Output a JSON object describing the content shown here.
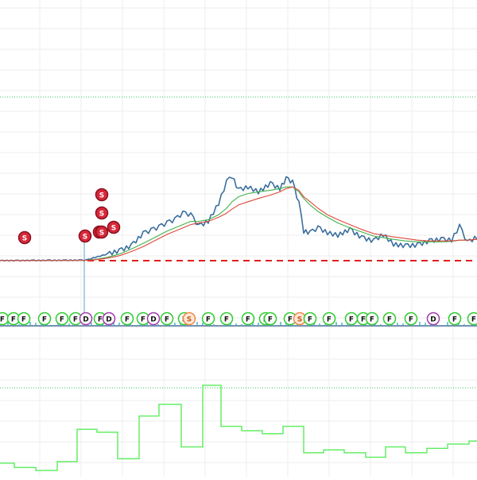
{
  "colors": {
    "background": "#ffffff",
    "grid": "#eeeeee",
    "dotted_line": "#34c26a",
    "price_line": "#3a6e9e",
    "ma_fast": "#e0463c",
    "ma_slow": "#41b24a",
    "threshold": "#e01e1e",
    "marker_sell": "#d8283a",
    "marker_f": "#2ecc2e",
    "marker_d": "#a23ab0",
    "marker_s_light": "#f08a4b",
    "panel_line": "#66ee66",
    "volume_bar": "#3ab0c4"
  },
  "markers": {
    "sell_label": "S",
    "f_label": "F",
    "d_label": "D",
    "s_label": "S"
  },
  "chart_data": [
    {
      "type": "line",
      "title": "",
      "xlabel": "",
      "ylabel": "",
      "grid": true,
      "x": [
        0,
        20,
        40,
        60,
        80,
        100,
        108,
        120,
        135,
        150,
        165,
        180,
        190,
        200,
        210,
        220,
        230,
        240,
        250,
        262,
        275,
        285,
        292,
        300,
        312,
        325,
        340,
        352,
        360,
        368,
        376,
        382,
        390,
        400,
        412,
        425,
        440,
        455,
        470,
        482,
        495,
        510,
        525,
        540,
        555,
        568,
        578,
        588,
        600
      ],
      "series": [
        {
          "values": [
            2,
            2,
            2.2,
            2.3,
            2.4,
            2.5,
            2.4,
            6,
            10,
            14,
            20,
            35,
            39,
            43,
            48,
            52,
            60,
            58,
            44,
            50,
            72,
            98,
            105,
            88,
            92,
            86,
            96,
            90,
            102,
            98,
            72,
            38,
            36,
            42,
            36,
            33,
            40,
            30,
            26,
            34,
            22,
            20,
            21,
            26,
            28,
            27,
            44,
            24,
            31
          ]
        },
        {
          "values": [
            2,
            2,
            2,
            2.1,
            2.2,
            2.3,
            2.4,
            3.5,
            6,
            10,
            16,
            23,
            28,
            33,
            38,
            42,
            46,
            50,
            50,
            52,
            58,
            66,
            74,
            80,
            84,
            86,
            88,
            90,
            92,
            92,
            86,
            78,
            70,
            62,
            55,
            48,
            42,
            37,
            32,
            30,
            28,
            26,
            25,
            25,
            25,
            25.5,
            27,
            27,
            28
          ]
        },
        {
          "values": [
            2,
            2,
            2,
            2.1,
            2.1,
            2.2,
            2.3,
            3,
            5,
            8,
            13,
            19,
            24,
            29,
            34,
            38,
            42,
            46,
            48,
            50,
            55,
            60,
            65,
            70,
            74,
            78,
            82,
            86,
            90,
            92,
            88,
            80,
            74,
            66,
            58,
            52,
            46,
            40,
            35,
            33,
            31,
            29,
            27,
            26,
            26,
            26,
            27,
            27,
            28
          ]
        }
      ]
    },
    {
      "type": "line",
      "title": "",
      "xlabel": "",
      "ylabel": "",
      "grid": true,
      "x": [
        0,
        18,
        45,
        72,
        97,
        122,
        148,
        175,
        200,
        228,
        255,
        278,
        304,
        330,
        356,
        382,
        407,
        433,
        460,
        485,
        510,
        537,
        563,
        590
      ],
      "series": [
        {
          "values": [
            5,
            2,
            0,
            6,
            28,
            26,
            8,
            37,
            45,
            16,
            58,
            30,
            27,
            25,
            30,
            12,
            14,
            12,
            9,
            16,
            12,
            15,
            18,
            20
          ]
        }
      ]
    }
  ]
}
